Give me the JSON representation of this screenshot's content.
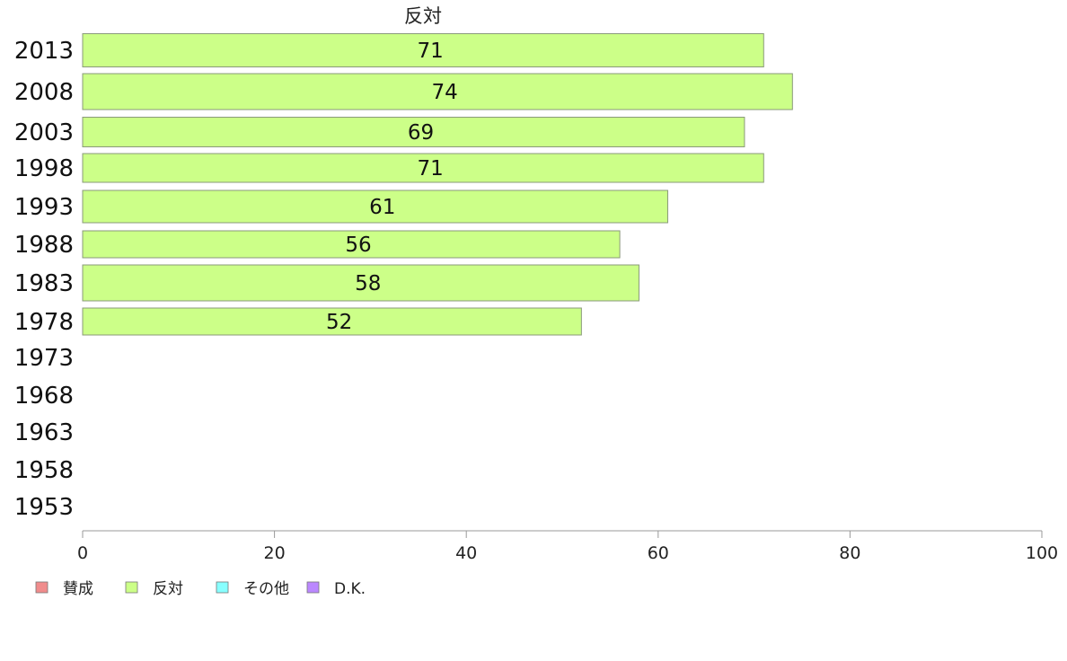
{
  "chart_data": {
    "type": "bar",
    "orientation": "horizontal",
    "series_title": "反対",
    "categories": [
      "2013",
      "2008",
      "2003",
      "1998",
      "1993",
      "1988",
      "1983",
      "1978",
      "1973",
      "1968",
      "1963",
      "1958",
      "1953"
    ],
    "series": [
      {
        "name": "反対",
        "color": "#ccff88",
        "values": [
          71,
          74,
          69,
          71,
          61,
          56,
          58,
          52,
          null,
          null,
          null,
          null,
          null
        ]
      }
    ],
    "xlim": [
      0,
      100
    ],
    "xticks": [
      "0",
      "20",
      "40",
      "60",
      "80",
      "100"
    ],
    "grid": false,
    "legend": {
      "placement": "bottom-left",
      "items": [
        {
          "label": "賛成",
          "color": "#f08c8c"
        },
        {
          "label": "反対",
          "color": "#ccff88"
        },
        {
          "label": "その他",
          "color": "#88ffff"
        },
        {
          "label": "D.K.",
          "color": "#bb88ff"
        }
      ]
    }
  }
}
